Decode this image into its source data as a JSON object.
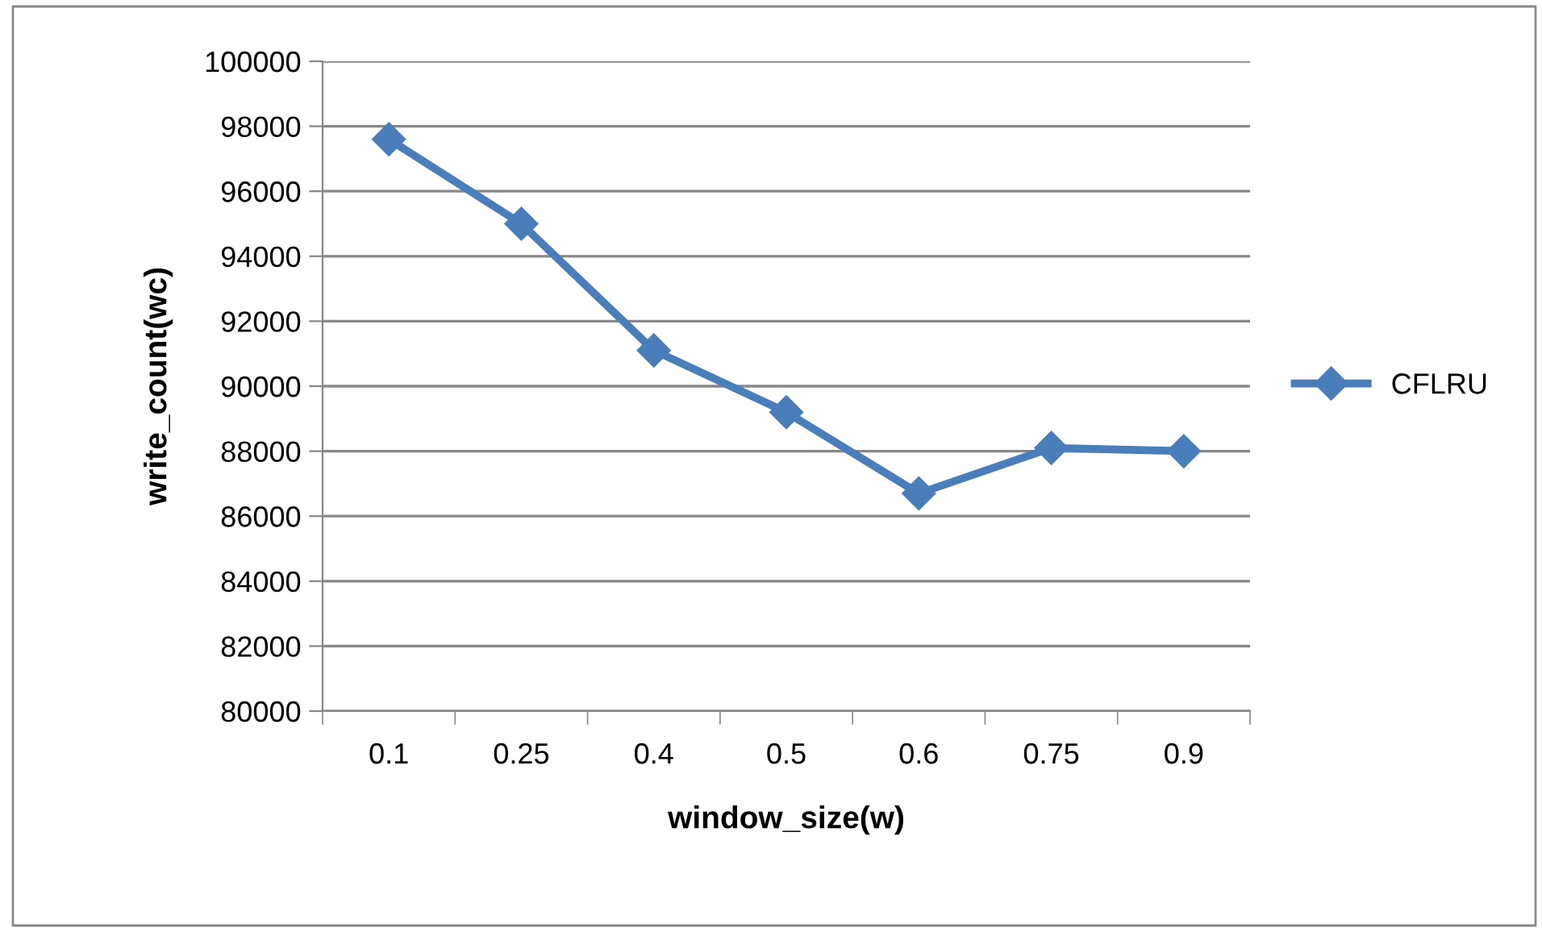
{
  "chart_data": {
    "type": "line",
    "xlabel": "window_size(w)",
    "ylabel": "write_count(wc)",
    "categories": [
      "0.1",
      "0.25",
      "0.4",
      "0.5",
      "0.6",
      "0.75",
      "0.9"
    ],
    "series": [
      {
        "name": "CFLRU",
        "color": "#4a7ebb",
        "values": [
          97600,
          95000,
          91100,
          89200,
          86700,
          88100,
          88000
        ]
      }
    ],
    "ylim": [
      80000,
      100000
    ],
    "yticks": [
      80000,
      82000,
      84000,
      86000,
      88000,
      90000,
      92000,
      94000,
      96000,
      98000,
      100000
    ],
    "grid": "y",
    "legend": "right",
    "marker": "diamond",
    "line_style": "solid"
  }
}
